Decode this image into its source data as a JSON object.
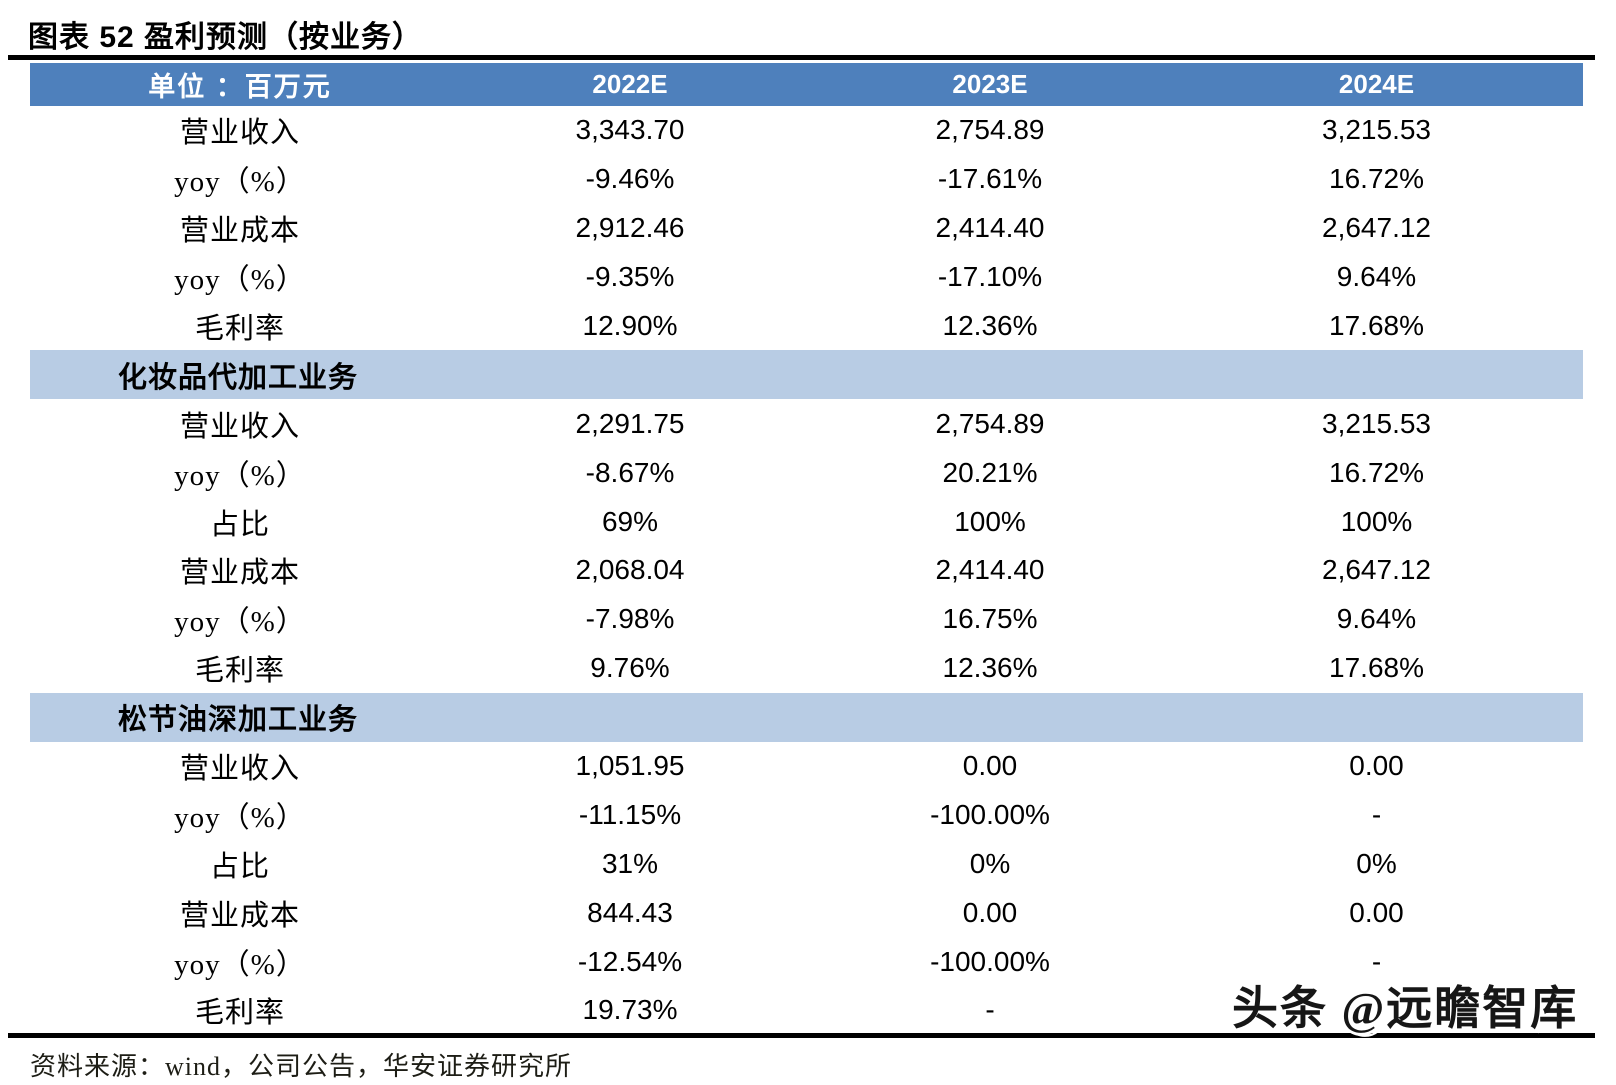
{
  "title": "图表 52  盈利预测（按业务）",
  "chart_data": {
    "type": "table",
    "title": "图表 52 盈利预测（按业务）",
    "header": [
      "单位 ：百万元",
      "2022E",
      "2023E",
      "2024E"
    ],
    "sections": [
      {
        "label": "",
        "rows": [
          [
            "营业收入",
            "3,343.70",
            "2,754.89",
            "3,215.53"
          ],
          [
            "yoy（%）",
            "-9.46%",
            "-17.61%",
            "16.72%"
          ],
          [
            "营业成本",
            "2,912.46",
            "2,414.40",
            "2,647.12"
          ],
          [
            "yoy（%）",
            "-9.35%",
            "-17.10%",
            "9.64%"
          ],
          [
            "毛利率",
            "12.90%",
            "12.36%",
            "17.68%"
          ]
        ]
      },
      {
        "label": "化妆品代加工业务",
        "rows": [
          [
            "营业收入",
            "2,291.75",
            "2,754.89",
            "3,215.53"
          ],
          [
            "yoy（%）",
            "-8.67%",
            "20.21%",
            "16.72%"
          ],
          [
            "占比",
            "69%",
            "100%",
            "100%"
          ],
          [
            "营业成本",
            "2,068.04",
            "2,414.40",
            "2,647.12"
          ],
          [
            "yoy（%）",
            "-7.98%",
            "16.75%",
            "9.64%"
          ],
          [
            "毛利率",
            "9.76%",
            "12.36%",
            "17.68%"
          ]
        ]
      },
      {
        "label": "松节油深加工业务",
        "rows": [
          [
            "营业收入",
            "1,051.95",
            "0.00",
            "0.00"
          ],
          [
            "yoy（%）",
            "-11.15%",
            "-100.00%",
            "-"
          ],
          [
            "占比",
            "31%",
            "0%",
            "0%"
          ],
          [
            "营业成本",
            "844.43",
            "0.00",
            "0.00"
          ],
          [
            "yoy（%）",
            "-12.54%",
            "-100.00%",
            "-"
          ],
          [
            "毛利率",
            "19.73%",
            "-",
            "-"
          ]
        ]
      }
    ]
  },
  "footer": {
    "source": "资料来源：wind，公司公告，华安证券研究所"
  },
  "watermark": "头条 @远瞻智库",
  "colors": {
    "header_bg": "#4E80BC",
    "section_bg": "#B8CCE4",
    "rule": "#000000",
    "header_text": "#FFFFFF",
    "body_text": "#000000"
  }
}
